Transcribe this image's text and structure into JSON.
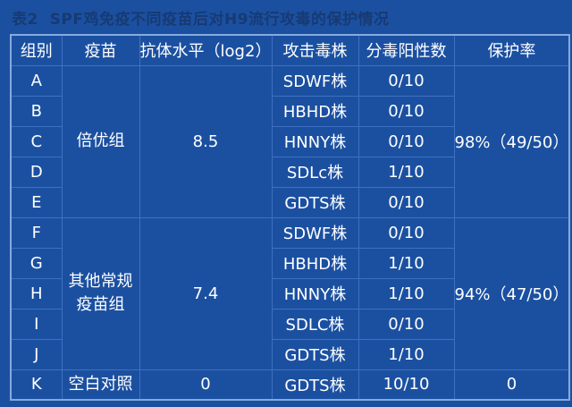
{
  "title": "表2  SPF鸡免疫不同疫苗后对H9流行攻毒的保护情况",
  "colors": {
    "page_background": "#1b50a1",
    "cell_background": "#1b50a1",
    "inner_border": "#3e70c0",
    "outer_border": "#86aade",
    "body_text": "#ffffff",
    "title_text": "#173a73"
  },
  "table": {
    "headers": [
      "组别",
      "疫苗",
      "抗体水平（log2）",
      "攻击毒株",
      "分毒阳性数",
      "保护率"
    ],
    "groups": [
      {
        "vaccine": "倍优组",
        "antibody_level": "8.5",
        "protection_rate": "98%（49/50）",
        "rows": [
          {
            "group": "A",
            "strain": "SDWF株",
            "positive": "0/10"
          },
          {
            "group": "B",
            "strain": "HBHD株",
            "positive": "0/10"
          },
          {
            "group": "C",
            "strain": "HNNY株",
            "positive": "0/10"
          },
          {
            "group": "D",
            "strain": "SDLc株",
            "positive": "1/10"
          },
          {
            "group": "E",
            "strain": "GDTS株",
            "positive": "0/10"
          }
        ]
      },
      {
        "vaccine": "其他常规疫苗组",
        "antibody_level": "7.4",
        "protection_rate": "94%（47/50）",
        "rows": [
          {
            "group": "F",
            "strain": "SDWF株",
            "positive": "0/10"
          },
          {
            "group": "G",
            "strain": "HBHD株",
            "positive": "1/10"
          },
          {
            "group": "H",
            "strain": "HNNY株",
            "positive": "1/10"
          },
          {
            "group": "I",
            "strain": "SDLC株",
            "positive": "0/10"
          },
          {
            "group": "J",
            "strain": "GDTS株",
            "positive": "1/10"
          }
        ]
      },
      {
        "vaccine": "空白对照",
        "antibody_level": "0",
        "protection_rate": "0",
        "rows": [
          {
            "group": "K",
            "strain": "GDTS株",
            "positive": "10/10"
          }
        ]
      }
    ]
  }
}
